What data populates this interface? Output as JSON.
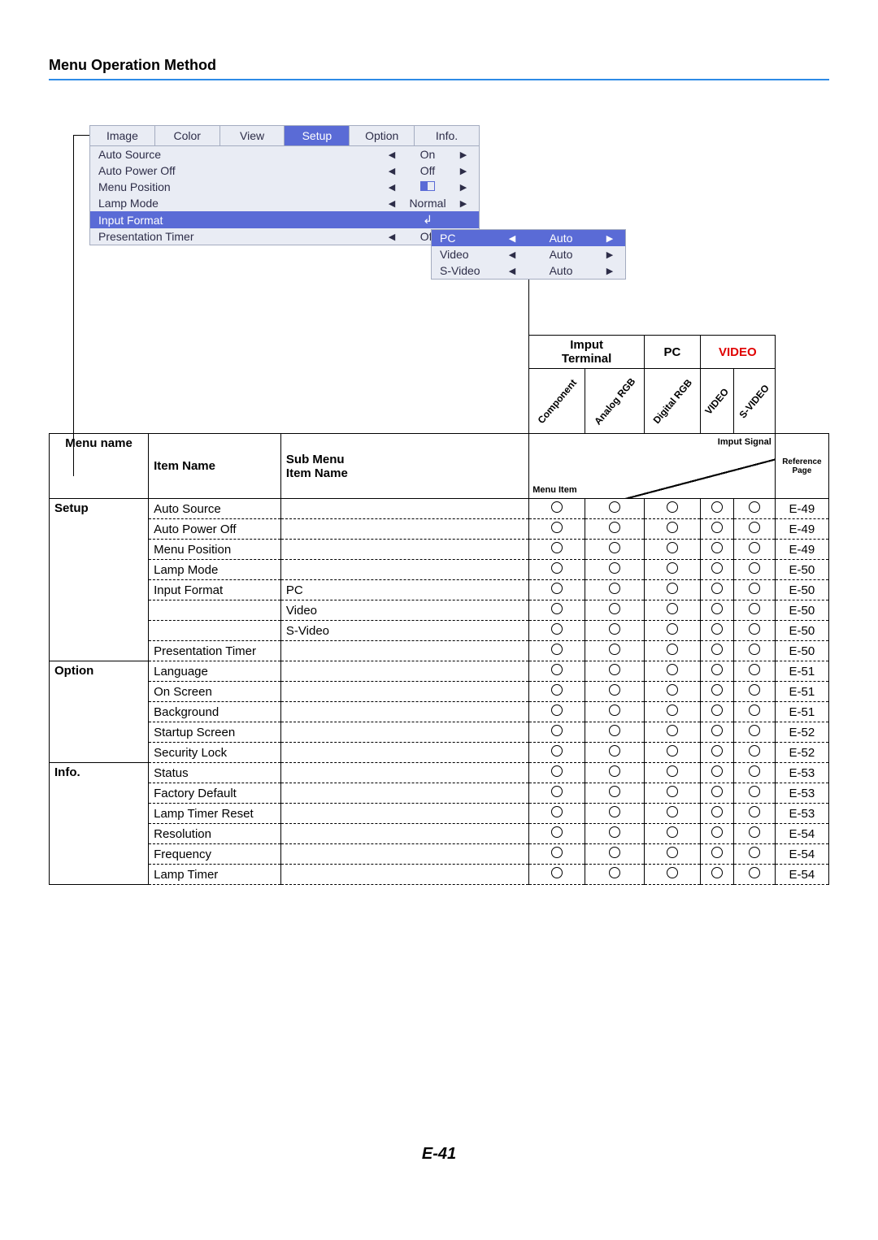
{
  "title": "Menu Operation Method",
  "page_number": "E-41",
  "colors": {
    "rule": "#2d8be6",
    "osd_bg": "#e9ecf4",
    "osd_border": "#a4acc0",
    "osd_sel": "#5a6bd6",
    "video_red": "#e00000"
  },
  "osd": {
    "tabs": [
      "Image",
      "Color",
      "View",
      "Setup",
      "Option",
      "Info."
    ],
    "active_tab_index": 3,
    "rows": [
      {
        "label": "Auto Source",
        "value": "On",
        "selected": false
      },
      {
        "label": "Auto Power Off",
        "value": "Off",
        "selected": false
      },
      {
        "label": "Menu Position",
        "value": "__pos__",
        "selected": false
      },
      {
        "label": "Lamp Mode",
        "value": "Normal",
        "selected": false
      },
      {
        "label": "Input Format",
        "value": "__enter__",
        "selected": true
      },
      {
        "label": "Presentation Timer",
        "value": "Off",
        "selected": false
      }
    ],
    "sub_rows": [
      {
        "label": "PC",
        "value": "Auto",
        "selected": true
      },
      {
        "label": "Video",
        "value": "Auto",
        "selected": false
      },
      {
        "label": "S-Video",
        "value": "Auto",
        "selected": false
      }
    ]
  },
  "table": {
    "top_headers": {
      "input_terminal": "Imput\nTerminal",
      "pc": "PC",
      "video": "VIDEO"
    },
    "col_headers": {
      "menu_name": "Menu name",
      "item_name": "Item Name",
      "sub_menu": "Sub Menu\nItem Name",
      "diag_top": "Imput Signal",
      "diag_bot": "Menu Item",
      "signals": [
        "Component",
        "Analog RGB",
        "Digital RGB",
        "VIDEO",
        "S-VIDEO"
      ],
      "ref": "Reference\nPage"
    },
    "rows": [
      {
        "menu": "Setup",
        "item": "Auto Source",
        "sub": "",
        "sig": [
          1,
          1,
          1,
          1,
          1
        ],
        "ref": "E-49"
      },
      {
        "menu": "",
        "item": "Auto Power Off",
        "sub": "",
        "sig": [
          1,
          1,
          1,
          1,
          1
        ],
        "ref": "E-49"
      },
      {
        "menu": "",
        "item": "Menu Position",
        "sub": "",
        "sig": [
          1,
          1,
          1,
          1,
          1
        ],
        "ref": "E-49"
      },
      {
        "menu": "",
        "item": "Lamp Mode",
        "sub": "",
        "sig": [
          1,
          1,
          1,
          1,
          1
        ],
        "ref": "E-50"
      },
      {
        "menu": "",
        "item": "Input Format",
        "sub": "PC",
        "sig": [
          1,
          1,
          1,
          1,
          1
        ],
        "ref": "E-50"
      },
      {
        "menu": "",
        "item": "",
        "sub": "Video",
        "sig": [
          1,
          1,
          1,
          1,
          1
        ],
        "ref": "E-50"
      },
      {
        "menu": "",
        "item": "",
        "sub": "S-Video",
        "sig": [
          1,
          1,
          1,
          1,
          1
        ],
        "ref": "E-50"
      },
      {
        "menu": "",
        "item": "Presentation Timer",
        "sub": "",
        "sig": [
          1,
          1,
          1,
          1,
          1
        ],
        "ref": "E-50"
      },
      {
        "menu": "Option",
        "item": "Language",
        "sub": "",
        "sig": [
          1,
          1,
          1,
          1,
          1
        ],
        "ref": "E-51"
      },
      {
        "menu": "",
        "item": "On Screen",
        "sub": "",
        "sig": [
          1,
          1,
          1,
          1,
          1
        ],
        "ref": "E-51"
      },
      {
        "menu": "",
        "item": "Background",
        "sub": "",
        "sig": [
          1,
          1,
          1,
          1,
          1
        ],
        "ref": "E-51"
      },
      {
        "menu": "",
        "item": "Startup Screen",
        "sub": "",
        "sig": [
          1,
          1,
          1,
          1,
          1
        ],
        "ref": "E-52"
      },
      {
        "menu": "",
        "item": "Security Lock",
        "sub": "",
        "sig": [
          1,
          1,
          1,
          1,
          1
        ],
        "ref": "E-52"
      },
      {
        "menu": "Info.",
        "item": "Status",
        "sub": "",
        "sig": [
          1,
          1,
          1,
          1,
          1
        ],
        "ref": "E-53"
      },
      {
        "menu": "",
        "item": "Factory Default",
        "sub": "",
        "sig": [
          1,
          1,
          1,
          1,
          1
        ],
        "ref": "E-53"
      },
      {
        "menu": "",
        "item": "Lamp Timer Reset",
        "sub": "",
        "sig": [
          1,
          1,
          1,
          1,
          1
        ],
        "ref": "E-53"
      },
      {
        "menu": "",
        "item": "Resolution",
        "sub": "",
        "sig": [
          1,
          1,
          1,
          1,
          1
        ],
        "ref": "E-54"
      },
      {
        "menu": "",
        "item": "Frequency",
        "sub": "",
        "sig": [
          1,
          1,
          1,
          1,
          1
        ],
        "ref": "E-54"
      },
      {
        "menu": "",
        "item": "Lamp Timer",
        "sub": "",
        "sig": [
          1,
          1,
          1,
          1,
          1
        ],
        "ref": "E-54"
      }
    ]
  }
}
